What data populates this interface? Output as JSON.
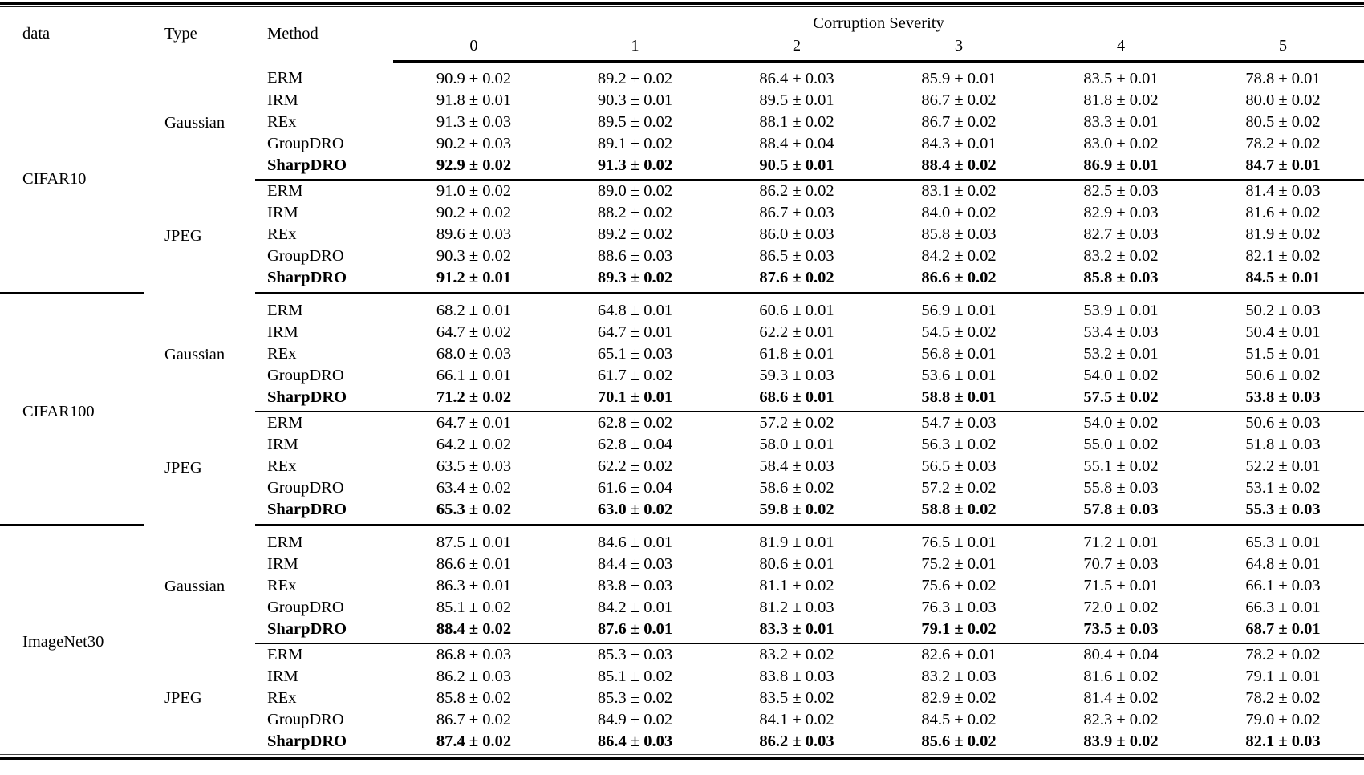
{
  "colors": {
    "background": "#ffffff",
    "text": "#000000",
    "rule": "#000000"
  },
  "header": {
    "data": "data",
    "type": "Type",
    "method": "Method",
    "severity": "Corruption Severity",
    "levels": [
      "0",
      "1",
      "2",
      "3",
      "4",
      "5"
    ]
  },
  "datasets": [
    {
      "name": "CIFAR10",
      "groups": [
        {
          "type": "Gaussian",
          "rows": [
            {
              "method": "ERM",
              "bold": false,
              "values": [
                "90.9 ± 0.02",
                "89.2 ± 0.02",
                "86.4 ± 0.03",
                "85.9 ± 0.01",
                "83.5 ± 0.01",
                "78.8 ± 0.01"
              ]
            },
            {
              "method": "IRM",
              "bold": false,
              "values": [
                "91.8 ± 0.01",
                "90.3 ± 0.01",
                "89.5 ± 0.01",
                "86.7 ± 0.02",
                "81.8 ± 0.02",
                "80.0 ± 0.02"
              ]
            },
            {
              "method": "REx",
              "bold": false,
              "values": [
                "91.3 ± 0.03",
                "89.5 ± 0.02",
                "88.1 ± 0.02",
                "86.7 ± 0.02",
                "83.3 ± 0.01",
                "80.5 ± 0.02"
              ]
            },
            {
              "method": "GroupDRO",
              "bold": false,
              "values": [
                "90.2 ± 0.03",
                "89.1 ± 0.02",
                "88.4 ± 0.04",
                "84.3 ± 0.01",
                "83.0 ± 0.02",
                "78.2 ± 0.02"
              ]
            },
            {
              "method": "SharpDRO",
              "bold": true,
              "values": [
                "92.9 ± 0.02",
                "91.3 ± 0.02",
                "90.5 ± 0.01",
                "88.4 ± 0.02",
                "86.9 ± 0.01",
                "84.7 ± 0.01"
              ]
            }
          ]
        },
        {
          "type": "JPEG",
          "rows": [
            {
              "method": "ERM",
              "bold": false,
              "values": [
                "91.0 ± 0.02",
                "89.0 ± 0.02",
                "86.2 ± 0.02",
                "83.1 ± 0.02",
                "82.5 ± 0.03",
                "81.4 ± 0.03"
              ]
            },
            {
              "method": "IRM",
              "bold": false,
              "values": [
                "90.2 ± 0.02",
                "88.2 ± 0.02",
                "86.7 ± 0.03",
                "84.0 ± 0.02",
                "82.9 ± 0.03",
                "81.6 ± 0.02"
              ]
            },
            {
              "method": "REx",
              "bold": false,
              "values": [
                "89.6 ± 0.03",
                "89.2 ± 0.02",
                "86.0 ± 0.03",
                "85.8 ± 0.03",
                "82.7 ± 0.03",
                "81.9 ± 0.02"
              ]
            },
            {
              "method": "GroupDRO",
              "bold": false,
              "values": [
                "90.3 ± 0.02",
                "88.6 ± 0.03",
                "86.5 ± 0.03",
                "84.2 ± 0.02",
                "83.2 ± 0.02",
                "82.1 ± 0.02"
              ]
            },
            {
              "method": "SharpDRO",
              "bold": true,
              "values": [
                "91.2 ± 0.01",
                "89.3 ± 0.02",
                "87.6 ± 0.02",
                "86.6 ± 0.02",
                "85.8 ± 0.03",
                "84.5 ± 0.01"
              ]
            }
          ]
        }
      ]
    },
    {
      "name": "CIFAR100",
      "groups": [
        {
          "type": "Gaussian",
          "rows": [
            {
              "method": "ERM",
              "bold": false,
              "values": [
                "68.2 ± 0.01",
                "64.8 ± 0.01",
                "60.6 ± 0.01",
                "56.9 ± 0.01",
                "53.9 ± 0.01",
                "50.2 ± 0.03"
              ]
            },
            {
              "method": "IRM",
              "bold": false,
              "values": [
                "64.7 ± 0.02",
                "64.7 ± 0.01",
                "62.2 ± 0.01",
                "54.5 ± 0.02",
                "53.4 ± 0.03",
                "50.4 ± 0.01"
              ]
            },
            {
              "method": "REx",
              "bold": false,
              "values": [
                "68.0 ± 0.03",
                "65.1 ± 0.03",
                "61.8 ± 0.01",
                "56.8 ± 0.01",
                "53.2 ± 0.01",
                "51.5 ± 0.01"
              ]
            },
            {
              "method": "GroupDRO",
              "bold": false,
              "values": [
                "66.1 ± 0.01",
                "61.7 ± 0.02",
                "59.3 ± 0.03",
                "53.6 ± 0.01",
                "54.0 ± 0.02",
                "50.6 ± 0.02"
              ]
            },
            {
              "method": "SharpDRO",
              "bold": true,
              "values": [
                "71.2 ± 0.02",
                "70.1 ± 0.01",
                "68.6 ± 0.01",
                "58.8 ± 0.01",
                "57.5 ± 0.02",
                "53.8 ± 0.03"
              ]
            }
          ]
        },
        {
          "type": "JPEG",
          "rows": [
            {
              "method": "ERM",
              "bold": false,
              "values": [
                "64.7 ± 0.01",
                "62.8 ± 0.02",
                "57.2 ± 0.02",
                "54.7 ± 0.03",
                "54.0 ± 0.02",
                "50.6 ± 0.03"
              ]
            },
            {
              "method": "IRM",
              "bold": false,
              "values": [
                "64.2 ± 0.02",
                "62.8 ± 0.04",
                "58.0 ± 0.01",
                "56.3 ± 0.02",
                "55.0 ± 0.02",
                "51.8 ± 0.03"
              ]
            },
            {
              "method": "REx",
              "bold": false,
              "values": [
                "63.5 ± 0.03",
                "62.2 ± 0.02",
                "58.4 ± 0.03",
                "56.5 ± 0.03",
                "55.1 ± 0.02",
                "52.2 ± 0.01"
              ]
            },
            {
              "method": "GroupDRO",
              "bold": false,
              "values": [
                "63.4 ± 0.02",
                "61.6 ± 0.04",
                "58.6 ± 0.02",
                "57.2 ± 0.02",
                "55.8 ± 0.03",
                "53.1 ± 0.02"
              ]
            },
            {
              "method": "SharpDRO",
              "bold": true,
              "values": [
                "65.3 ± 0.02",
                "63.0 ± 0.02",
                "59.8 ± 0.02",
                "58.8 ± 0.02",
                "57.8 ± 0.03",
                "55.3 ± 0.03"
              ]
            }
          ]
        }
      ]
    },
    {
      "name": "ImageNet30",
      "groups": [
        {
          "type": "Gaussian",
          "rows": [
            {
              "method": "ERM",
              "bold": false,
              "values": [
                "87.5 ± 0.01",
                "84.6 ± 0.01",
                "81.9 ± 0.01",
                "76.5 ± 0.01",
                "71.2 ± 0.01",
                "65.3 ± 0.01"
              ]
            },
            {
              "method": "IRM",
              "bold": false,
              "values": [
                "86.6 ± 0.01",
                "84.4 ± 0.03",
                "80.6 ± 0.01",
                "75.2 ± 0.01",
                "70.7 ± 0.03",
                "64.8 ± 0.01"
              ]
            },
            {
              "method": "REx",
              "bold": false,
              "values": [
                "86.3 ± 0.01",
                "83.8 ± 0.03",
                "81.1 ± 0.02",
                "75.6 ± 0.02",
                "71.5 ± 0.01",
                "66.1 ± 0.03"
              ]
            },
            {
              "method": "GroupDRO",
              "bold": false,
              "values": [
                "85.1 ± 0.02",
                "84.2 ± 0.01",
                "81.2 ± 0.03",
                "76.3 ± 0.03",
                "72.0 ± 0.02",
                "66.3 ± 0.01"
              ]
            },
            {
              "method": "SharpDRO",
              "bold": true,
              "values": [
                "88.4 ± 0.02",
                "87.6 ± 0.01",
                "83.3 ± 0.01",
                "79.1 ± 0.02",
                "73.5 ± 0.03",
                "68.7 ± 0.01"
              ]
            }
          ]
        },
        {
          "type": "JPEG",
          "rows": [
            {
              "method": "ERM",
              "bold": false,
              "values": [
                "86.8 ± 0.03",
                "85.3 ± 0.03",
                "83.2 ± 0.02",
                "82.6 ± 0.01",
                "80.4 ± 0.04",
                "78.2 ± 0.02"
              ]
            },
            {
              "method": "IRM",
              "bold": false,
              "values": [
                "86.2 ± 0.03",
                "85.1 ± 0.02",
                "83.8 ± 0.03",
                "83.2 ± 0.03",
                "81.6 ± 0.02",
                "79.1 ± 0.01"
              ]
            },
            {
              "method": "REx",
              "bold": false,
              "values": [
                "85.8 ± 0.02",
                "85.3 ± 0.02",
                "83.5 ± 0.02",
                "82.9 ± 0.02",
                "81.4 ± 0.02",
                "78.2 ± 0.02"
              ]
            },
            {
              "method": "GroupDRO",
              "bold": false,
              "values": [
                "86.7 ± 0.02",
                "84.9 ± 0.02",
                "84.1 ± 0.02",
                "84.5 ± 0.02",
                "82.3 ± 0.02",
                "79.0 ± 0.02"
              ]
            },
            {
              "method": "SharpDRO",
              "bold": true,
              "values": [
                "87.4 ± 0.02",
                "86.4 ± 0.03",
                "86.2 ± 0.03",
                "85.6 ± 0.02",
                "83.9 ± 0.02",
                "82.1 ± 0.03"
              ]
            }
          ]
        }
      ]
    }
  ]
}
